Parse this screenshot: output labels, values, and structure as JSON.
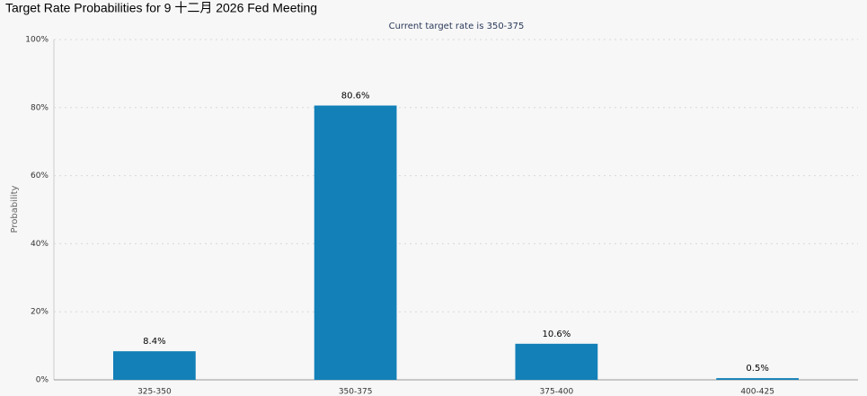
{
  "chart_data": {
    "type": "bar",
    "title": "Target Rate Probabilities for 9 十二月 2026 Fed Meeting",
    "subtitle": "Current target rate is 350-375",
    "y_label": "Probability",
    "categories": [
      "325-350",
      "350-375",
      "375-400",
      "400-425"
    ],
    "values": [
      8.4,
      80.6,
      10.6,
      0.5
    ],
    "value_labels": [
      "8.4%",
      "80.6%",
      "10.6%",
      "0.5%"
    ],
    "color": "#1380b8",
    "ylim": [
      0,
      100
    ],
    "yticks": [
      {
        "value": 0,
        "label": "0%"
      },
      {
        "value": 20,
        "label": "20%"
      },
      {
        "value": 40,
        "label": "40%"
      },
      {
        "value": 60,
        "label": "60%"
      },
      {
        "value": 80,
        "label": "80%"
      },
      {
        "value": 100,
        "label": "100%"
      }
    ],
    "grid": true
  }
}
